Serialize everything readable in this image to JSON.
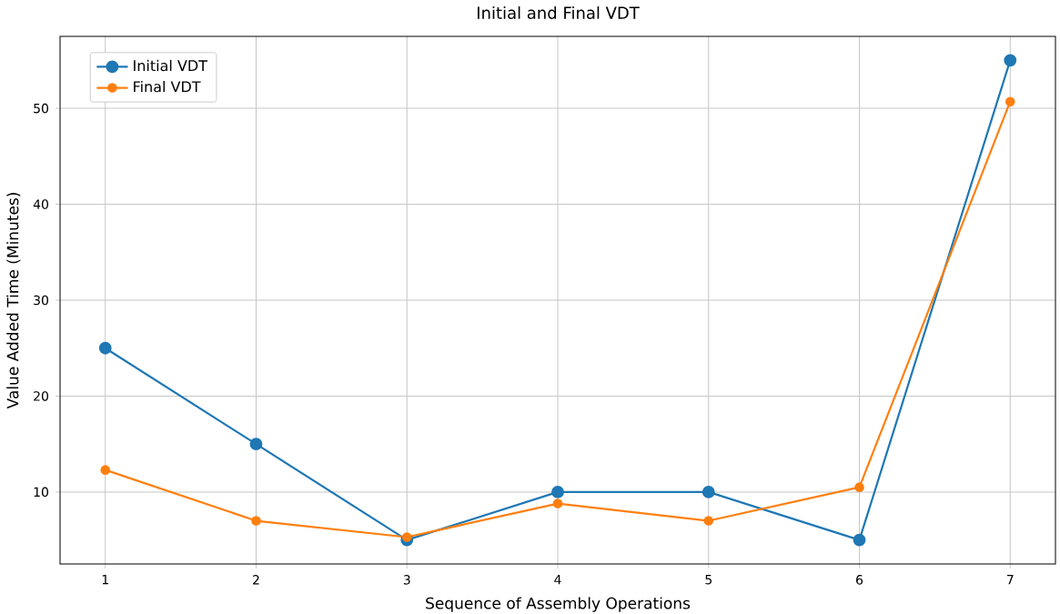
{
  "chart_data": {
    "type": "line",
    "title": "Initial and Final VDT",
    "xlabel": "Sequence of Assembly Operations",
    "ylabel": "Value Added Time (Minutes)",
    "x": [
      1,
      2,
      3,
      4,
      5,
      6,
      7
    ],
    "series": [
      {
        "name": "Initial VDT",
        "color": "#1f77b4",
        "values": [
          25,
          15,
          5,
          10,
          10,
          5,
          55
        ]
      },
      {
        "name": "Final VDT",
        "color": "#ff7f0e",
        "values": [
          12.3,
          7,
          5.3,
          8.8,
          7,
          10.5,
          50.7
        ]
      }
    ],
    "xlim": [
      0.7,
      7.3
    ],
    "ylim": [
      2.5,
      57.5
    ],
    "xticks": [
      1,
      2,
      3,
      4,
      5,
      6,
      7
    ],
    "yticks": [
      10,
      20,
      30,
      40,
      50
    ],
    "grid": true,
    "legend": "top left",
    "marker": "circle",
    "line_style": "solid"
  }
}
